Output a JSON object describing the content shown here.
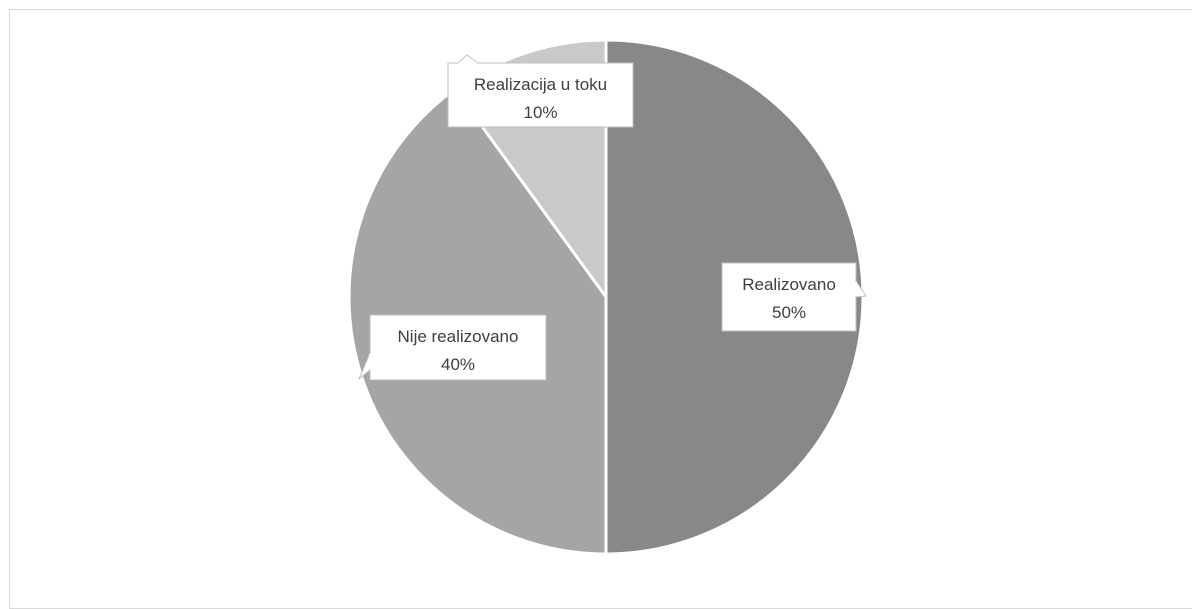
{
  "chart_data": {
    "type": "pie",
    "title": "",
    "slices": [
      {
        "label": "Realizovano",
        "percent_label": "50%",
        "value": 50,
        "color": "#888888"
      },
      {
        "label": "Nije realizovano",
        "percent_label": "40%",
        "value": 40,
        "color": "#a5a5a5"
      },
      {
        "label": "Realizacija u toku",
        "percent_label": "10%",
        "value": 10,
        "color": "#c9c9c9"
      }
    ],
    "start_angle_deg": 0,
    "direction": "clockwise",
    "separator_color": "#ffffff",
    "legend": "none"
  }
}
